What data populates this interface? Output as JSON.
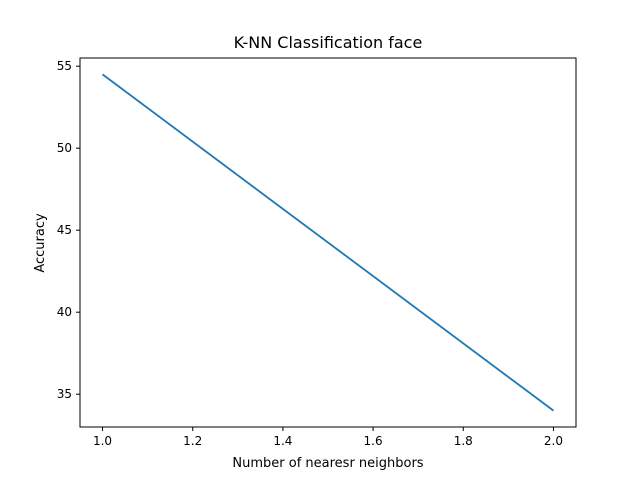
{
  "chart_data": {
    "type": "line",
    "title": "K-NN Classification face",
    "xlabel": "Number of nearesr neighbors",
    "ylabel": "Accuracy",
    "xlim": [
      0.95,
      2.05
    ],
    "ylim": [
      33.0,
      55.5
    ],
    "xticks": [
      1.0,
      1.2,
      1.4,
      1.6,
      1.8,
      2.0
    ],
    "xtick_labels": [
      "1.0",
      "1.2",
      "1.4",
      "1.6",
      "1.8",
      "2.0"
    ],
    "yticks": [
      35,
      40,
      45,
      50,
      55
    ],
    "ytick_labels": [
      "35",
      "40",
      "45",
      "50",
      "55"
    ],
    "grid": false,
    "series": [
      {
        "x": [
          1,
          2
        ],
        "values": [
          54.5,
          34.0
        ],
        "color": "#1f77b4"
      }
    ]
  }
}
